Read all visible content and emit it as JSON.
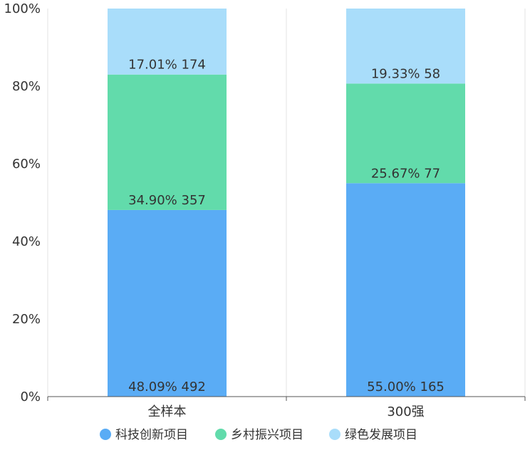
{
  "chart_data": {
    "type": "bar",
    "stacked": true,
    "normalized": true,
    "categories": [
      "全样本",
      "300强"
    ],
    "series": [
      {
        "name": "科技创新项目",
        "color": "#5aacf5",
        "percent": [
          48.09,
          55.0
        ],
        "count": [
          492,
          165
        ],
        "labels": [
          "48.09% 492",
          "55.00% 165"
        ]
      },
      {
        "name": "乡村振兴项目",
        "color": "#62dbab",
        "percent": [
          34.9,
          25.67
        ],
        "count": [
          357,
          77
        ],
        "labels": [
          "34.90% 357",
          "25.67% 77"
        ]
      },
      {
        "name": "绿色发展项目",
        "color": "#a9ddfa",
        "percent": [
          17.01,
          19.33
        ],
        "count": [
          174,
          58
        ],
        "labels": [
          "17.01% 174",
          "19.33% 58"
        ]
      }
    ],
    "yticks": [
      "0%",
      "20%",
      "40%",
      "60%",
      "80%",
      "100%"
    ],
    "ylim": [
      0,
      100
    ],
    "legend": "bottom",
    "grid": "vertical separators"
  }
}
